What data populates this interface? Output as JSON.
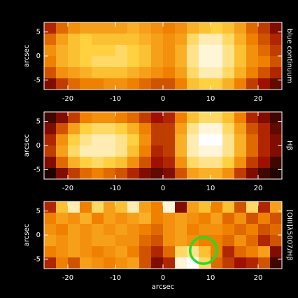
{
  "chart_data": [
    {
      "type": "heatmap",
      "label": "blue continuum",
      "ylabel": "arcsec",
      "xlim": [
        -25,
        25
      ],
      "ylim": [
        -7,
        7
      ],
      "xticks": [
        -20,
        -10,
        0,
        10,
        20
      ],
      "yticks": [
        -5,
        0,
        5
      ],
      "colormap": [
        "#000000",
        "#a01000",
        "#f08000",
        "#ffd040",
        "#ffffff"
      ],
      "values": [
        [
          0.3,
          0.45,
          0.55,
          0.6,
          0.6,
          0.6,
          0.6,
          0.65,
          0.6,
          0.55,
          0.5,
          0.55,
          0.65,
          0.7,
          0.75,
          0.7,
          0.6,
          0.45,
          0.35,
          0.2
        ],
        [
          0.45,
          0.6,
          0.7,
          0.75,
          0.7,
          0.7,
          0.7,
          0.7,
          0.65,
          0.6,
          0.55,
          0.6,
          0.8,
          0.9,
          0.9,
          0.8,
          0.65,
          0.5,
          0.4,
          0.3
        ],
        [
          0.55,
          0.65,
          0.7,
          0.75,
          0.75,
          0.75,
          0.8,
          0.75,
          0.7,
          0.6,
          0.55,
          0.65,
          0.85,
          0.95,
          0.95,
          0.85,
          0.7,
          0.55,
          0.45,
          0.35
        ],
        [
          0.5,
          0.65,
          0.7,
          0.75,
          0.8,
          0.8,
          0.8,
          0.75,
          0.7,
          0.6,
          0.55,
          0.65,
          0.85,
          0.95,
          0.95,
          0.85,
          0.7,
          0.55,
          0.5,
          0.4
        ],
        [
          0.4,
          0.55,
          0.6,
          0.65,
          0.7,
          0.7,
          0.7,
          0.65,
          0.6,
          0.55,
          0.5,
          0.6,
          0.8,
          0.9,
          0.9,
          0.8,
          0.65,
          0.5,
          0.4,
          0.3
        ],
        [
          0.2,
          0.35,
          0.45,
          0.5,
          0.5,
          0.55,
          0.55,
          0.5,
          0.45,
          0.4,
          0.4,
          0.5,
          0.7,
          0.75,
          0.75,
          0.65,
          0.5,
          0.35,
          0.25,
          0.15
        ]
      ]
    },
    {
      "type": "heatmap",
      "label": "Hβ",
      "ylabel": "arcsec",
      "xlim": [
        -25,
        25
      ],
      "ylim": [
        -7,
        7
      ],
      "xticks": [
        -20,
        -10,
        0,
        10,
        20
      ],
      "yticks": [
        -5,
        0,
        5
      ],
      "colormap": [
        "#000000",
        "#a01000",
        "#f08000",
        "#ffd040",
        "#ffffff"
      ],
      "values": [
        [
          0.1,
          0.2,
          0.35,
          0.5,
          0.55,
          0.55,
          0.5,
          0.45,
          0.35,
          0.25,
          0.3,
          0.5,
          0.7,
          0.8,
          0.8,
          0.7,
          0.5,
          0.3,
          0.2,
          0.1
        ],
        [
          0.2,
          0.4,
          0.6,
          0.75,
          0.8,
          0.8,
          0.75,
          0.65,
          0.5,
          0.35,
          0.35,
          0.6,
          0.85,
          0.95,
          0.95,
          0.8,
          0.6,
          0.4,
          0.3,
          0.15
        ],
        [
          0.3,
          0.55,
          0.75,
          0.85,
          0.9,
          0.9,
          0.85,
          0.75,
          0.55,
          0.35,
          0.35,
          0.65,
          0.9,
          1.0,
          1.0,
          0.85,
          0.65,
          0.45,
          0.3,
          0.2
        ],
        [
          0.35,
          0.6,
          0.8,
          0.9,
          0.9,
          0.9,
          0.85,
          0.7,
          0.5,
          0.3,
          0.35,
          0.65,
          0.9,
          0.95,
          0.95,
          0.85,
          0.65,
          0.45,
          0.3,
          0.2
        ],
        [
          0.2,
          0.45,
          0.65,
          0.75,
          0.8,
          0.75,
          0.7,
          0.55,
          0.4,
          0.25,
          0.3,
          0.55,
          0.8,
          0.85,
          0.85,
          0.75,
          0.55,
          0.35,
          0.25,
          0.1
        ],
        [
          0.05,
          0.2,
          0.35,
          0.45,
          0.5,
          0.45,
          0.4,
          0.3,
          0.2,
          0.15,
          0.2,
          0.4,
          0.6,
          0.65,
          0.65,
          0.55,
          0.35,
          0.2,
          0.1,
          0.05
        ]
      ]
    },
    {
      "type": "heatmap",
      "label": "[OIII]λ5007/Hβ",
      "ylabel": "arcsec",
      "xlabel": "arcsec",
      "xlim": [
        -25,
        25
      ],
      "ylim": [
        -7,
        7
      ],
      "xticks": [
        -20,
        -10,
        0,
        10,
        20
      ],
      "yticks": [
        -5,
        0,
        5
      ],
      "colormap": [
        "#000000",
        "#a01000",
        "#f08000",
        "#ffd040",
        "#ffffff"
      ],
      "values": [
        [
          0.3,
          0.7,
          0.9,
          0.5,
          0.8,
          0.6,
          0.7,
          0.9,
          0.6,
          0.5,
          0.95,
          0.2,
          0.6,
          0.7,
          0.5,
          0.7,
          0.4,
          0.8,
          0.3,
          0.6
        ],
        [
          0.5,
          0.6,
          0.55,
          0.65,
          0.5,
          0.6,
          0.55,
          0.6,
          0.65,
          0.5,
          0.55,
          0.6,
          0.55,
          0.5,
          0.6,
          0.45,
          0.55,
          0.4,
          0.5,
          0.4
        ],
        [
          0.55,
          0.5,
          0.6,
          0.55,
          0.6,
          0.55,
          0.6,
          0.55,
          0.5,
          0.45,
          0.55,
          0.6,
          0.5,
          0.55,
          0.55,
          0.5,
          0.45,
          0.5,
          0.4,
          0.45
        ],
        [
          0.6,
          0.55,
          0.6,
          0.55,
          0.6,
          0.6,
          0.55,
          0.55,
          0.45,
          0.4,
          0.55,
          0.6,
          0.55,
          0.5,
          0.5,
          0.45,
          0.55,
          0.45,
          0.3,
          0.4
        ],
        [
          0.5,
          0.55,
          0.6,
          0.55,
          0.5,
          0.55,
          0.6,
          0.5,
          0.4,
          0.3,
          0.45,
          0.8,
          0.85,
          0.7,
          0.5,
          0.3,
          0.45,
          0.5,
          0.6,
          0.2
        ],
        [
          0.3,
          0.5,
          0.4,
          0.6,
          0.55,
          0.5,
          0.55,
          0.6,
          0.4,
          0.2,
          0.3,
          0.95,
          1.0,
          0.8,
          0.45,
          0.35,
          0.25,
          0.3,
          0.4,
          0.1
        ]
      ],
      "marker": {
        "x": 8.5,
        "y": -3.2,
        "r": 2.8,
        "color": "#22dd22"
      }
    }
  ]
}
